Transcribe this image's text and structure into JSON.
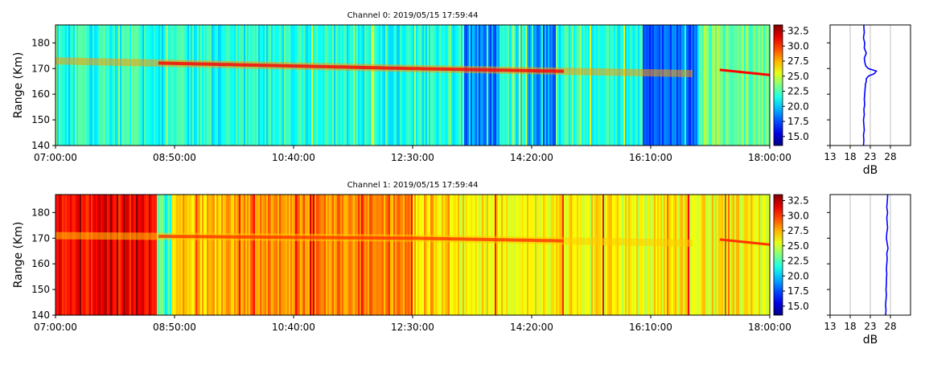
{
  "chart_data": [
    {
      "type": "heatmap",
      "title": "Channel 0: 2019/05/15 17:59:44",
      "ylabel": "Range (Km)",
      "x_ticks": [
        "07:00:00",
        "08:50:00",
        "10:40:00",
        "12:30:00",
        "14:20:00",
        "16:10:00",
        "18:00:00"
      ],
      "ylim": [
        140,
        187
      ],
      "y_ticks": [
        140,
        150,
        160,
        170,
        180
      ],
      "colorbar": {
        "min": 13.5,
        "max": 33.5,
        "ticks": [
          "15.0",
          "17.5",
          "20.0",
          "22.5",
          "25.0",
          "27.5",
          "30.0",
          "32.5"
        ]
      },
      "background_level": 21.5,
      "echo": {
        "range_km_start": 173,
        "range_km_mid": 170,
        "range_km_end": 168,
        "peak_db": 31
      },
      "profile": {
        "xlabel": "dB",
        "xlim": [
          13,
          33
        ],
        "x_ticks": [
          13,
          18,
          23,
          28
        ],
        "ranges": [
          140,
          142,
          144,
          146,
          148,
          150,
          152,
          154,
          156,
          158,
          160,
          162,
          164,
          165,
          166,
          167,
          168,
          169,
          170,
          171,
          172,
          174,
          176,
          178,
          180,
          182,
          184,
          186,
          187
        ],
        "values": [
          21.3,
          21.4,
          21.3,
          21.5,
          21.4,
          21.3,
          21.5,
          21.4,
          21.6,
          21.5,
          21.6,
          21.7,
          21.8,
          22.0,
          22.0,
          22.5,
          24.0,
          24.5,
          22.5,
          21.9,
          21.7,
          21.5,
          22.0,
          21.5,
          21.6,
          21.3,
          21.5,
          21.4,
          21.4
        ]
      },
      "colors": {
        "line": "#0000ff"
      }
    },
    {
      "type": "heatmap",
      "title": "Channel 1: 2019/05/15 17:59:44",
      "ylabel": "Range (Km)",
      "x_ticks": [
        "07:00:00",
        "08:50:00",
        "10:40:00",
        "12:30:00",
        "14:20:00",
        "16:10:00",
        "18:00:00"
      ],
      "ylim": [
        140,
        187
      ],
      "y_ticks": [
        140,
        150,
        160,
        170,
        180
      ],
      "colorbar": {
        "min": 13.5,
        "max": 33.5,
        "ticks": [
          "15.0",
          "17.5",
          "20.0",
          "22.5",
          "25.0",
          "27.5",
          "30.0",
          "32.5"
        ]
      },
      "background_level": 27,
      "echo": {
        "range_km_start": 171,
        "range_km_mid": 170,
        "range_km_end": 168,
        "peak_db": 30
      },
      "profile": {
        "xlabel": "dB",
        "xlim": [
          13,
          33
        ],
        "x_ticks": [
          13,
          18,
          23,
          28
        ],
        "ranges": [
          140,
          142,
          144,
          146,
          148,
          150,
          152,
          154,
          156,
          158,
          160,
          162,
          164,
          166,
          168,
          170,
          172,
          174,
          176,
          178,
          180,
          182,
          184,
          186,
          187
        ],
        "values": [
          26.8,
          26.9,
          26.8,
          26.9,
          27.0,
          26.9,
          27.0,
          27.0,
          27.1,
          27.0,
          27.1,
          27.2,
          27.1,
          27.4,
          27.2,
          27.0,
          27.1,
          27.3,
          27.2,
          27.1,
          27.3,
          27.1,
          27.2,
          27.3,
          27.3
        ]
      },
      "colors": {
        "line": "#0000ff"
      }
    }
  ]
}
